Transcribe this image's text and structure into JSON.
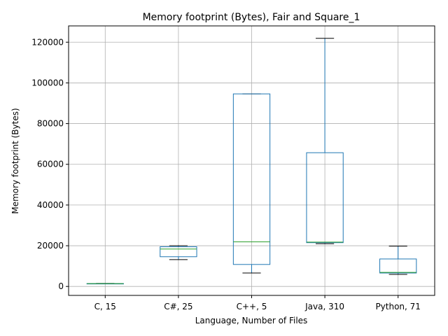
{
  "chart_data": {
    "type": "box",
    "title": "Memory footprint (Bytes), Fair and Square_1",
    "xlabel": "Language, Number of Files",
    "ylabel": "Memory footprint (Bytes)",
    "ylim": [
      -4400,
      128000
    ],
    "yticks": [
      0,
      20000,
      40000,
      60000,
      80000,
      100000,
      120000
    ],
    "grid": true,
    "colors": {
      "box": "#1f77b4",
      "median": "#2ca02c",
      "whisker": "#1f77b4",
      "cap": "#000000",
      "grid": "#b0b0b0"
    },
    "categories": [
      "C, 15",
      "C#, 25",
      "C++, 5",
      "Java, 310",
      "Python, 71"
    ],
    "boxes": [
      {
        "label": "C, 15",
        "whislo": 1300,
        "q1": 1300,
        "med": 1400,
        "q3": 1400,
        "whishi": 1500
      },
      {
        "label": "C#, 25",
        "whislo": 13200,
        "q1": 14600,
        "med": 18400,
        "q3": 19500,
        "whishi": 20000
      },
      {
        "label": "C++, 5",
        "whislo": 6600,
        "q1": 10800,
        "med": 21900,
        "q3": 94600,
        "whishi": 94600
      },
      {
        "label": "Java, 310",
        "whislo": 21000,
        "q1": 21500,
        "med": 21800,
        "q3": 65700,
        "whishi": 121900
      },
      {
        "label": "Python, 71",
        "whislo": 5900,
        "q1": 6600,
        "med": 6900,
        "q3": 13500,
        "whishi": 19800
      }
    ]
  }
}
